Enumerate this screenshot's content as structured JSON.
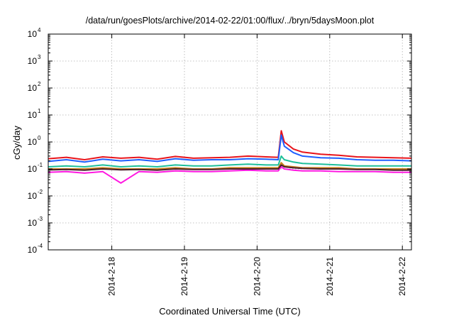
{
  "chart_data": {
    "type": "line",
    "title": "/data/run/goesPlots/archive/2014-02-22/01:00/flux/../bryn/5daysMoon.plot",
    "xlabel": "Coordinated Universal Time (UTC)",
    "ylabel": "cGy/day",
    "yscale": "log",
    "ylim": [
      0.0001,
      10000
    ],
    "xlim": [
      "2014-02-17 03:00",
      "2014-02-22 03:00"
    ],
    "x_tick_labels": [
      "2014-2-18",
      "2014-2-19",
      "2014-2-20",
      "2014-2-21",
      "2014-2-22"
    ],
    "x_ticks": [
      "2014-02-18 00:00",
      "2014-02-19 00:00",
      "2014-02-20 00:00",
      "2014-02-21 00:00",
      "2014-02-22 00:00"
    ],
    "y_ticks": [
      {
        "base": "10",
        "exp": "-4",
        "value": 0.0001
      },
      {
        "base": "10",
        "exp": "-3",
        "value": 0.001
      },
      {
        "base": "10",
        "exp": "-2",
        "value": 0.01
      },
      {
        "base": "10",
        "exp": "-1",
        "value": 0.1
      },
      {
        "base": "10",
        "exp": "0",
        "value": 1
      },
      {
        "base": "10",
        "exp": "1",
        "value": 10
      },
      {
        "base": "10",
        "exp": "2",
        "value": 100
      },
      {
        "base": "10",
        "exp": "3",
        "value": 1000
      },
      {
        "base": "10",
        "exp": "4",
        "value": 10000
      }
    ],
    "grid": true,
    "legend": "none",
    "x": [
      "2014-02-17 03:00",
      "2014-02-17 09:00",
      "2014-02-17 15:00",
      "2014-02-17 21:00",
      "2014-02-18 03:00",
      "2014-02-18 09:00",
      "2014-02-18 15:00",
      "2014-02-18 21:00",
      "2014-02-19 03:00",
      "2014-02-19 09:00",
      "2014-02-19 15:00",
      "2014-02-19 21:00",
      "2014-02-20 03:00",
      "2014-02-20 07:00",
      "2014-02-20 08:00",
      "2014-02-20 09:00",
      "2014-02-20 12:00",
      "2014-02-20 15:00",
      "2014-02-20 21:00",
      "2014-02-21 03:00",
      "2014-02-21 09:00",
      "2014-02-21 15:00",
      "2014-02-21 21:00",
      "2014-02-22 03:00"
    ],
    "series": [
      {
        "color": "#e8141b",
        "values": [
          0.24,
          0.27,
          0.22,
          0.28,
          0.25,
          0.27,
          0.23,
          0.29,
          0.25,
          0.26,
          0.27,
          0.3,
          0.28,
          0.27,
          2.6,
          1.0,
          0.55,
          0.42,
          0.35,
          0.32,
          0.28,
          0.27,
          0.26,
          0.25
        ]
      },
      {
        "color": "#1f5fff",
        "values": [
          0.19,
          0.22,
          0.18,
          0.23,
          0.2,
          0.22,
          0.19,
          0.24,
          0.21,
          0.22,
          0.22,
          0.24,
          0.23,
          0.22,
          1.8,
          0.7,
          0.4,
          0.3,
          0.26,
          0.25,
          0.22,
          0.21,
          0.21,
          0.2
        ]
      },
      {
        "color": "#1dbf9a",
        "values": [
          0.12,
          0.13,
          0.12,
          0.14,
          0.12,
          0.13,
          0.12,
          0.14,
          0.13,
          0.13,
          0.14,
          0.15,
          0.14,
          0.14,
          0.3,
          0.22,
          0.18,
          0.16,
          0.15,
          0.14,
          0.13,
          0.13,
          0.13,
          0.13
        ]
      },
      {
        "color": "#c8811a",
        "values": [
          0.1,
          0.1,
          0.1,
          0.11,
          0.1,
          0.1,
          0.1,
          0.11,
          0.1,
          0.1,
          0.11,
          0.11,
          0.11,
          0.11,
          0.17,
          0.13,
          0.12,
          0.11,
          0.11,
          0.11,
          0.1,
          0.1,
          0.1,
          0.1
        ]
      },
      {
        "color": "#ff18e0",
        "values": [
          0.075,
          0.08,
          0.07,
          0.08,
          0.03,
          0.08,
          0.075,
          0.085,
          0.08,
          0.08,
          0.085,
          0.09,
          0.085,
          0.085,
          0.12,
          0.1,
          0.09,
          0.085,
          0.085,
          0.08,
          0.08,
          0.08,
          0.075,
          0.075
        ]
      },
      {
        "color": "#4a1e2a",
        "values": [
          0.092,
          0.095,
          0.09,
          0.1,
          0.093,
          0.095,
          0.09,
          0.1,
          0.095,
          0.095,
          0.1,
          0.1,
          0.1,
          0.1,
          0.14,
          0.12,
          0.11,
          0.105,
          0.1,
          0.1,
          0.095,
          0.095,
          0.09,
          0.09
        ]
      }
    ]
  }
}
